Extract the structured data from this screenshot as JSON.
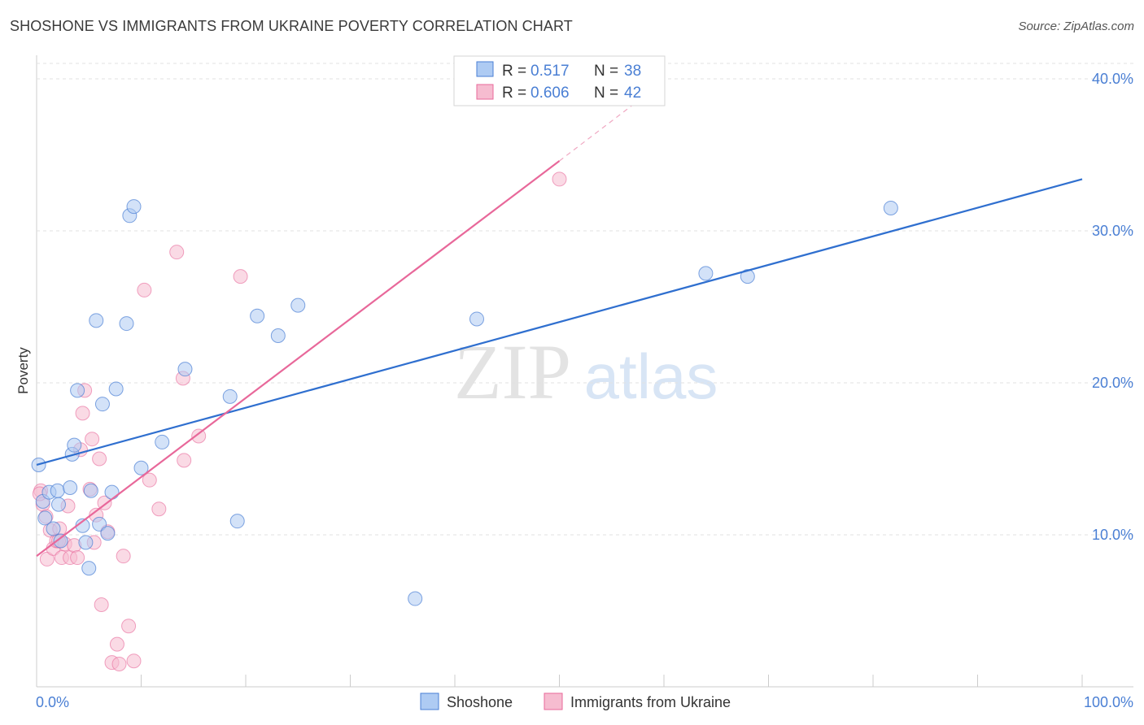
{
  "header": {
    "title": "SHOSHONE VS IMMIGRANTS FROM UKRAINE POVERTY CORRELATION CHART",
    "source": "Source: ZipAtlas.com"
  },
  "watermark": {
    "zip": "ZIP",
    "atlas": "atlas"
  },
  "colors": {
    "blue": "#4a7fd4",
    "blue_fill": "#aecbf3",
    "pink": "#e8689a",
    "pink_fill": "#f6bcd0",
    "axis_text": "#4a7fd4"
  },
  "legend_top": [
    {
      "series": "Shoshone",
      "r_label": "R =",
      "r_value": "0.517",
      "n_label": "N =",
      "n_value": "38"
    },
    {
      "series": "Immigrants from Ukraine",
      "r_label": "R =",
      "r_value": "0.606",
      "n_label": "N =",
      "n_value": "42"
    }
  ],
  "chart_data": {
    "type": "scatter",
    "title": "SHOSHONE VS IMMIGRANTS FROM UKRAINE POVERTY CORRELATION CHART",
    "xlabel": "",
    "ylabel": "Poverty",
    "xlim": [
      0,
      100
    ],
    "ylim": [
      0,
      41
    ],
    "x_tick_labels": [
      "0.0%",
      "100.0%"
    ],
    "y_ticks": [
      10,
      20,
      30,
      40
    ],
    "y_tick_labels": [
      "10.0%",
      "20.0%",
      "30.0%",
      "40.0%"
    ],
    "grid": true,
    "legend": [
      "Shoshone",
      "Immigrants from Ukraine"
    ],
    "series": [
      {
        "name": "Shoshone",
        "color": "#4a7fd4",
        "r": 0.517,
        "n": 38,
        "trend": {
          "x": [
            0,
            100
          ],
          "y": [
            14.6,
            33.4
          ]
        },
        "points": [
          [
            0.2,
            14.6
          ],
          [
            0.6,
            12.2
          ],
          [
            0.8,
            11.1
          ],
          [
            1.2,
            12.8
          ],
          [
            1.6,
            10.4
          ],
          [
            2.0,
            12.9
          ],
          [
            2.1,
            12.0
          ],
          [
            2.3,
            9.6
          ],
          [
            3.2,
            13.1
          ],
          [
            3.4,
            15.3
          ],
          [
            3.6,
            15.9
          ],
          [
            3.9,
            19.5
          ],
          [
            4.4,
            10.6
          ],
          [
            4.7,
            9.5
          ],
          [
            5.0,
            7.8
          ],
          [
            5.2,
            12.9
          ],
          [
            5.7,
            24.1
          ],
          [
            6.0,
            10.7
          ],
          [
            6.3,
            18.6
          ],
          [
            6.8,
            10.1
          ],
          [
            7.2,
            12.8
          ],
          [
            7.6,
            19.6
          ],
          [
            8.6,
            23.9
          ],
          [
            8.9,
            31.0
          ],
          [
            9.3,
            31.6
          ],
          [
            10.0,
            14.4
          ],
          [
            12.0,
            16.1
          ],
          [
            14.2,
            20.9
          ],
          [
            18.5,
            19.1
          ],
          [
            19.2,
            10.9
          ],
          [
            21.1,
            24.4
          ],
          [
            23.1,
            23.1
          ],
          [
            25.0,
            25.1
          ],
          [
            36.2,
            5.8
          ],
          [
            42.1,
            24.2
          ],
          [
            64.0,
            27.2
          ],
          [
            68.0,
            27.0
          ],
          [
            81.7,
            31.5
          ]
        ]
      },
      {
        "name": "Immigrants from Ukraine",
        "color": "#e8689a",
        "r": 0.606,
        "n": 42,
        "trend": {
          "x": [
            0,
            50
          ],
          "y": [
            8.6,
            34.6
          ]
        },
        "trend_dashed": {
          "x": [
            50,
            58
          ],
          "y": [
            34.6,
            38.8
          ]
        },
        "points": [
          [
            0.4,
            12.9
          ],
          [
            0.6,
            12.0
          ],
          [
            0.9,
            11.2
          ],
          [
            1.0,
            8.4
          ],
          [
            1.3,
            10.3
          ],
          [
            1.6,
            9.1
          ],
          [
            1.9,
            9.6
          ],
          [
            2.2,
            10.4
          ],
          [
            2.4,
            8.5
          ],
          [
            2.7,
            9.4
          ],
          [
            3.0,
            11.9
          ],
          [
            3.2,
            8.5
          ],
          [
            3.6,
            9.3
          ],
          [
            3.9,
            8.5
          ],
          [
            4.2,
            15.6
          ],
          [
            4.4,
            18.0
          ],
          [
            4.6,
            19.5
          ],
          [
            5.1,
            13.0
          ],
          [
            5.3,
            16.3
          ],
          [
            5.5,
            9.5
          ],
          [
            5.7,
            11.3
          ],
          [
            6.0,
            15.0
          ],
          [
            6.2,
            5.4
          ],
          [
            6.5,
            12.1
          ],
          [
            6.8,
            10.2
          ],
          [
            7.2,
            1.6
          ],
          [
            7.7,
            2.8
          ],
          [
            7.9,
            1.5
          ],
          [
            8.3,
            8.6
          ],
          [
            8.8,
            4.0
          ],
          [
            9.3,
            1.7
          ],
          [
            10.3,
            26.1
          ],
          [
            10.8,
            13.6
          ],
          [
            11.7,
            11.7
          ],
          [
            13.4,
            28.6
          ],
          [
            14.0,
            20.3
          ],
          [
            14.1,
            14.9
          ],
          [
            15.5,
            16.5
          ],
          [
            19.5,
            27.0
          ],
          [
            50.0,
            33.4
          ],
          [
            0.3,
            12.7
          ],
          [
            2.1,
            9.6
          ]
        ]
      }
    ]
  },
  "axes": {
    "ylabel": "Poverty",
    "x_min_label": "0.0%",
    "x_max_label": "100.0%"
  }
}
